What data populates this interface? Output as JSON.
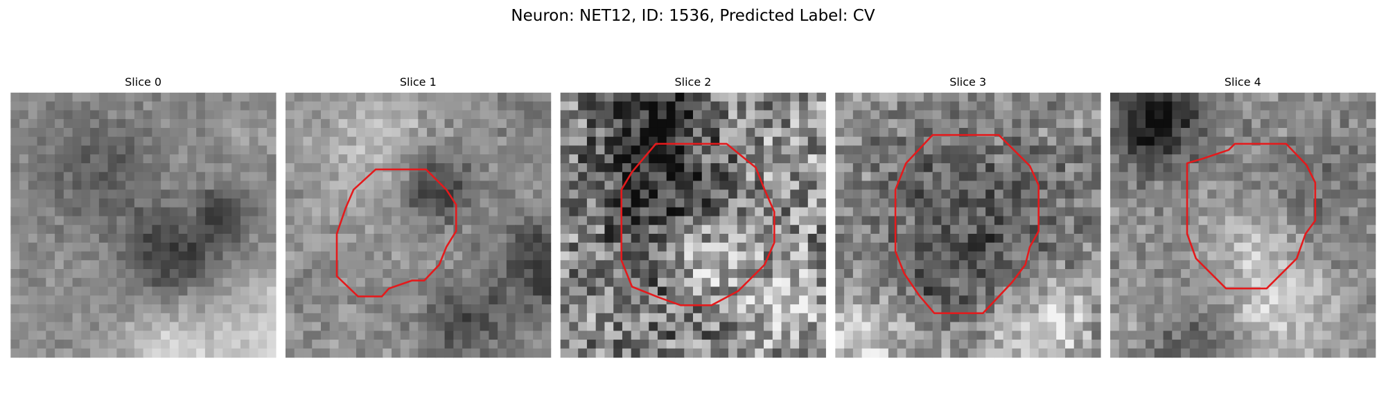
{
  "figure": {
    "title": "Neuron: NET12, ID: 1536, Predicted Label: CV",
    "panels": [
      {
        "title": "Slice 0"
      },
      {
        "title": "Slice 1"
      },
      {
        "title": "Slice 2"
      },
      {
        "title": "Slice 3"
      },
      {
        "title": "Slice 4"
      }
    ]
  }
}
